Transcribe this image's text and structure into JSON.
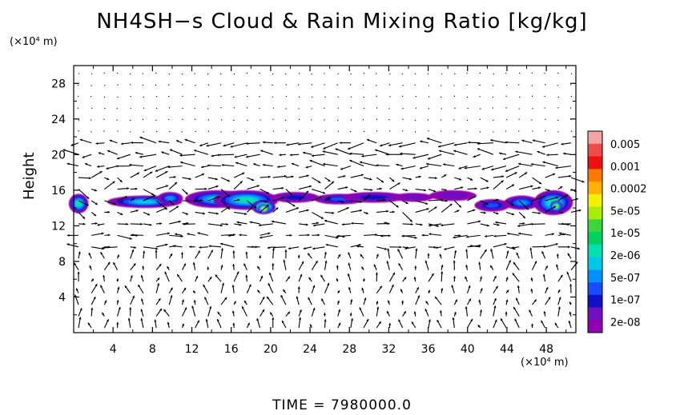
{
  "chart_data": {
    "type": "heatmap",
    "title": "NH4SH−s Cloud & Rain Mixing Ratio [kg/kg]",
    "ylabel": "Height",
    "y_unit_label": "(×10⁴ m)",
    "x_unit_label": "(×10⁴ m)",
    "xlim": [
      0,
      51
    ],
    "ylim": [
      0,
      30
    ],
    "x_ticks": [
      4,
      8,
      12,
      16,
      20,
      24,
      28,
      32,
      36,
      40,
      44,
      48
    ],
    "y_ticks": [
      4,
      8,
      12,
      16,
      20,
      24,
      28
    ],
    "colorbar": {
      "labels": [
        "0.005",
        "0.001",
        "0.0002",
        "5e-05",
        "1e-05",
        "2e-06",
        "5e-07",
        "1e-07",
        "2e-08"
      ],
      "colors": [
        "#f4a3a3",
        "#ee4b4b",
        "#ee1010",
        "#ff7a00",
        "#ffb000",
        "#f2f200",
        "#a8ee00",
        "#3cd63c",
        "#00d060",
        "#00e0b0",
        "#00c8e8",
        "#0090ff",
        "#1a4cff",
        "#1010c8",
        "#7010c0",
        "#9000b0"
      ]
    },
    "cloud_layer": {
      "base_height": 13.2,
      "top_height": 16.6,
      "blobs": [
        {
          "x": 0.5,
          "y": 14.5,
          "dx": 1.0,
          "dy": 1.1,
          "level": 6
        },
        {
          "x": 7.2,
          "y": 14.7,
          "dx": 3.8,
          "dy": 0.7,
          "level": 5
        },
        {
          "x": 9.8,
          "y": 15.1,
          "dx": 1.3,
          "dy": 0.7,
          "level": 4
        },
        {
          "x": 14.5,
          "y": 15.0,
          "dx": 3.2,
          "dy": 1.0,
          "level": 5
        },
        {
          "x": 17.5,
          "y": 14.9,
          "dx": 3.3,
          "dy": 1.1,
          "level": 6
        },
        {
          "x": 19.3,
          "y": 14.1,
          "dx": 1.2,
          "dy": 0.8,
          "level": 9
        },
        {
          "x": 19.3,
          "y": 13.9,
          "dx": 0.6,
          "dy": 0.5,
          "level": 11
        },
        {
          "x": 22.5,
          "y": 15.2,
          "dx": 2.4,
          "dy": 0.6,
          "level": 2
        },
        {
          "x": 27.0,
          "y": 15.0,
          "dx": 2.6,
          "dy": 0.6,
          "level": 3
        },
        {
          "x": 30.5,
          "y": 15.2,
          "dx": 3.2,
          "dy": 0.6,
          "level": 2
        },
        {
          "x": 34.5,
          "y": 15.2,
          "dx": 2.0,
          "dy": 0.5,
          "level": 1
        },
        {
          "x": 38.5,
          "y": 15.4,
          "dx": 2.4,
          "dy": 0.6,
          "level": 1
        },
        {
          "x": 42.5,
          "y": 14.3,
          "dx": 1.8,
          "dy": 0.7,
          "level": 3
        },
        {
          "x": 45.5,
          "y": 14.6,
          "dx": 1.8,
          "dy": 0.8,
          "level": 4
        },
        {
          "x": 48.7,
          "y": 14.6,
          "dx": 2.0,
          "dy": 1.4,
          "level": 6
        },
        {
          "x": 49.0,
          "y": 14.2,
          "dx": 0.6,
          "dy": 0.6,
          "level": 9
        }
      ]
    }
  },
  "time_label": "TIME = 7980000.0"
}
